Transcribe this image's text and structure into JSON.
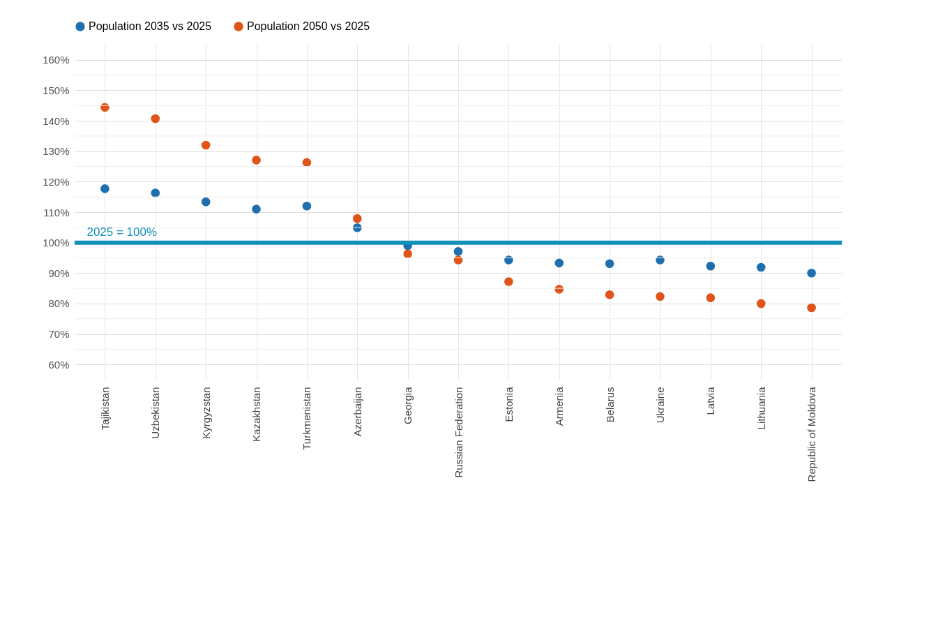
{
  "chart_data": {
    "type": "scatter",
    "categories": [
      "Tajikistan",
      "Uzbekistan",
      "Kyrgyzstan",
      "Kazakhstan",
      "Turkmenistan",
      "Azerbaijan",
      "Georgia",
      "Russian Federation",
      "Estonia",
      "Armenia",
      "Belarus",
      "Ukraine",
      "Latvia",
      "Lithuania",
      "Republic of Moldova"
    ],
    "series": [
      {
        "name": "Population 2035 vs 2025",
        "color": "#1f6fae",
        "values": [
          117.7,
          116.3,
          113.4,
          111.0,
          112.0,
          104.9,
          99.0,
          97.1,
          94.3,
          93.3,
          93.1,
          94.3,
          92.3,
          91.9,
          90.0
        ]
      },
      {
        "name": "Population 2050 vs 2025",
        "color": "#e0541a",
        "values": [
          144.4,
          140.7,
          132.0,
          127.1,
          126.3,
          107.9,
          96.3,
          94.3,
          87.2,
          84.7,
          82.9,
          82.3,
          81.9,
          80.0,
          78.6
        ]
      }
    ],
    "ylim": [
      55,
      165
    ],
    "yticks": [
      {
        "value": 60,
        "label": "60%"
      },
      {
        "value": 65,
        "label": null
      },
      {
        "value": 70,
        "label": "70%"
      },
      {
        "value": 75,
        "label": null
      },
      {
        "value": 80,
        "label": "80%"
      },
      {
        "value": 85,
        "label": null
      },
      {
        "value": 90,
        "label": "90%"
      },
      {
        "value": 95,
        "label": null
      },
      {
        "value": 100,
        "label": "100%"
      },
      {
        "value": 105,
        "label": null
      },
      {
        "value": 110,
        "label": "110%"
      },
      {
        "value": 115,
        "label": null
      },
      {
        "value": 120,
        "label": "120%"
      },
      {
        "value": 125,
        "label": null
      },
      {
        "value": 130,
        "label": "130%"
      },
      {
        "value": 135,
        "label": null
      },
      {
        "value": 140,
        "label": "140%"
      },
      {
        "value": 145,
        "label": null
      },
      {
        "value": 150,
        "label": "150%"
      },
      {
        "value": 155,
        "label": null
      },
      {
        "value": 160,
        "label": "160%"
      }
    ],
    "ref_lines": [
      {
        "axis": "y",
        "value": 100,
        "label": "2025 = 100%",
        "color": "#1390b8"
      }
    ],
    "grid": true,
    "legend": "top",
    "marker": "circle"
  }
}
